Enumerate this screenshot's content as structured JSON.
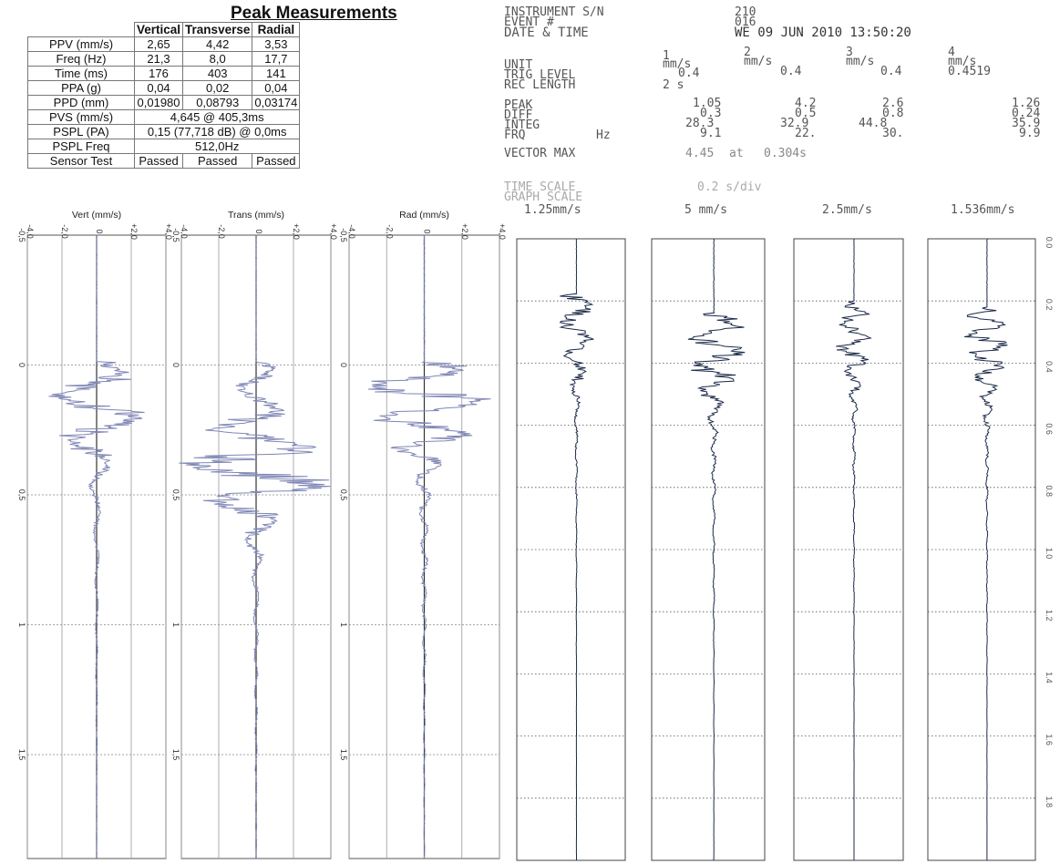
{
  "peak": {
    "title": "Peak Measurements",
    "columns": [
      "Vertical",
      "Transverse",
      "Radial"
    ],
    "rows": [
      {
        "label": "PPV (mm/s)",
        "values": [
          "2,65",
          "4,42",
          "3,53"
        ]
      },
      {
        "label": "Freq (Hz)",
        "values": [
          "21,3",
          "8,0",
          "17,7"
        ]
      },
      {
        "label": "Time (ms)",
        "values": [
          "176",
          "403",
          "141"
        ]
      },
      {
        "label": "PPA (g)",
        "values": [
          "0,04",
          "0,02",
          "0,04"
        ]
      },
      {
        "label": "PPD (mm)",
        "values": [
          "0,01980",
          "0,08793",
          "0,03174"
        ]
      }
    ],
    "merged_rows": [
      {
        "label": "PVS (mm/s)",
        "value": "4,645 @ 405,3ms"
      },
      {
        "label": "PSPL (PA)",
        "value": "0,15 (77,718 dB) @ 0,0ms"
      },
      {
        "label": "PSPL Freq",
        "value": "512,0Hz"
      }
    ],
    "sensor_test": {
      "label": "Sensor Test",
      "values": [
        "Passed",
        "Passed",
        "Passed"
      ]
    }
  },
  "instrument": {
    "serial_label": "INSTRUMENT S/N",
    "serial_value": "210",
    "event_label": "EVENT #",
    "event_value": "016",
    "date_label": "DATE & TIME",
    "date_value": "WE 09 JUN 2010 13:50:20",
    "channel_numbers": [
      "1",
      "2",
      "3",
      "4"
    ],
    "unit_label": "UNIT",
    "units": [
      "mm/s",
      "mm/s",
      "mm/s",
      "mm/s"
    ],
    "trig_label": "TRIG LEVEL",
    "trig_values": [
      "0.4",
      "0.4",
      "0.4",
      "0.4519"
    ],
    "reclen_label": "REC LENGTH",
    "reclen_value": "2 s",
    "peak_label": "PEAK",
    "peak_values": [
      "1.05",
      "4.2",
      "2.6",
      "1.26"
    ],
    "diff_label": "DIFF",
    "diff_values": [
      "0.3",
      "0.5",
      "0.8",
      "0.24"
    ],
    "integ_label": "INTEG",
    "integ_values": [
      "28.3",
      "32.9",
      "44.8",
      "35.9"
    ],
    "frq_label": "FRQ",
    "frq_unit": "Hz",
    "frq_values": [
      "9.1",
      "22.",
      "30.",
      "9.9"
    ],
    "vector_label": "VECTOR MAX",
    "vector_value": "4.45",
    "vector_at": "at",
    "vector_time": "0.304s",
    "time_scale_label": "TIME SCALE",
    "time_scale_value": "0.2 s/div",
    "graph_scale_label": "GRAPH SCALE",
    "graph_scales": [
      "1.25mm/s",
      "5 mm/s",
      "2.5mm/s",
      "1.536mm/s"
    ],
    "right_ticks": [
      "0.0",
      "0.2",
      "0.4",
      "0.6",
      "0.8",
      "1.0",
      "1.2",
      "1.4",
      "1.6",
      "1.8"
    ]
  },
  "chart_data": [
    {
      "type": "line",
      "panel": "left",
      "x_ticks": [
        "-4,0",
        "-2,0",
        "0",
        "+2,0",
        "+4,0"
      ],
      "xlim": [
        -4,
        4
      ],
      "ylim": [
        -0.5,
        1.9
      ],
      "y_ticks": [
        "-0,5",
        "0",
        "0,5",
        "1",
        "1,5"
      ],
      "y_tick_values": [
        -0.5,
        0,
        0.5,
        1,
        1.5
      ],
      "channels": [
        {
          "label": "Vert (mm/s)",
          "peak": 2.65,
          "peak_time": 0.176
        },
        {
          "label": "Trans (mm/s)",
          "peak": 4.42,
          "peak_time": 0.403
        },
        {
          "label": "Rad (mm/s)",
          "peak": 3.53,
          "peak_time": 0.141
        }
      ],
      "color": "#7f86b5"
    },
    {
      "type": "line",
      "panel": "right",
      "channels": [
        "1",
        "2",
        "3",
        "4"
      ],
      "peaks": [
        1.05,
        4.2,
        2.6,
        1.26
      ],
      "time_range": [
        0,
        2
      ]
    }
  ]
}
